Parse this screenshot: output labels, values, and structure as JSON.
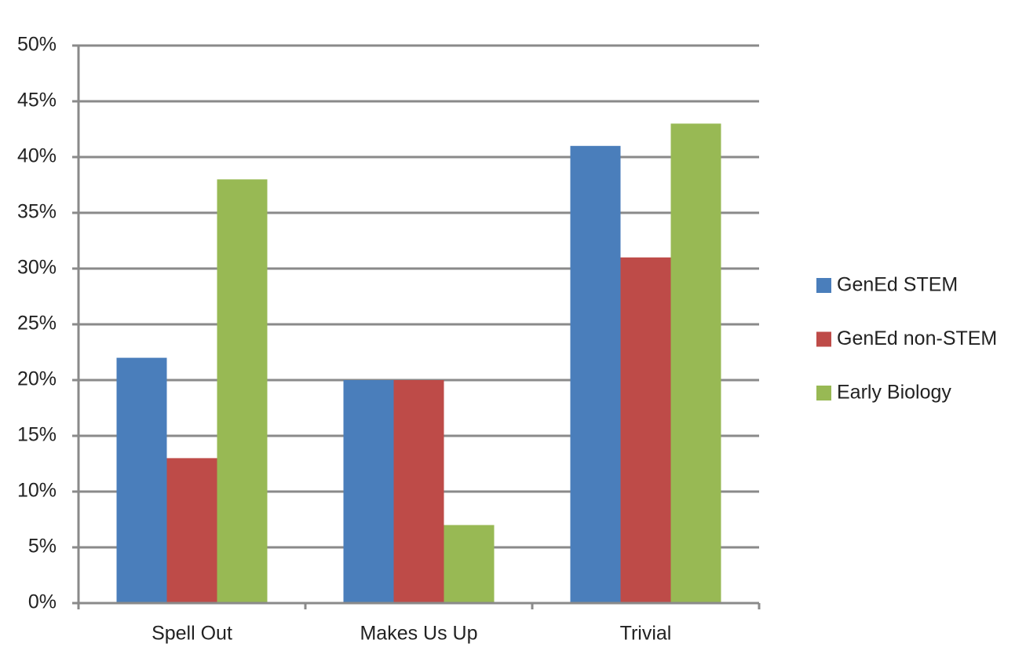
{
  "chart_data": {
    "type": "bar",
    "categories": [
      "Spell Out",
      "Makes Us Up",
      "Trivial"
    ],
    "series": [
      {
        "name": "GenEd STEM",
        "color": "#4a7ebb",
        "values": [
          22,
          20,
          41
        ]
      },
      {
        "name": "GenEd non-STEM",
        "color": "#be4b48",
        "values": [
          13,
          20,
          31
        ]
      },
      {
        "name": "Early Biology",
        "color": "#98b954",
        "values": [
          38,
          7,
          43
        ]
      }
    ],
    "ylim": [
      0,
      50
    ],
    "yticks": [
      {
        "value": 0,
        "label": "0%"
      },
      {
        "value": 5,
        "label": "5%"
      },
      {
        "value": 10,
        "label": "10%"
      },
      {
        "value": 15,
        "label": "15%"
      },
      {
        "value": 20,
        "label": "20%"
      },
      {
        "value": 25,
        "label": "25%"
      },
      {
        "value": 30,
        "label": "30%"
      },
      {
        "value": 35,
        "label": "35%"
      },
      {
        "value": 40,
        "label": "40%"
      },
      {
        "value": 45,
        "label": "45%"
      },
      {
        "value": 50,
        "label": "50%"
      }
    ],
    "grid": true,
    "legend": "right"
  }
}
